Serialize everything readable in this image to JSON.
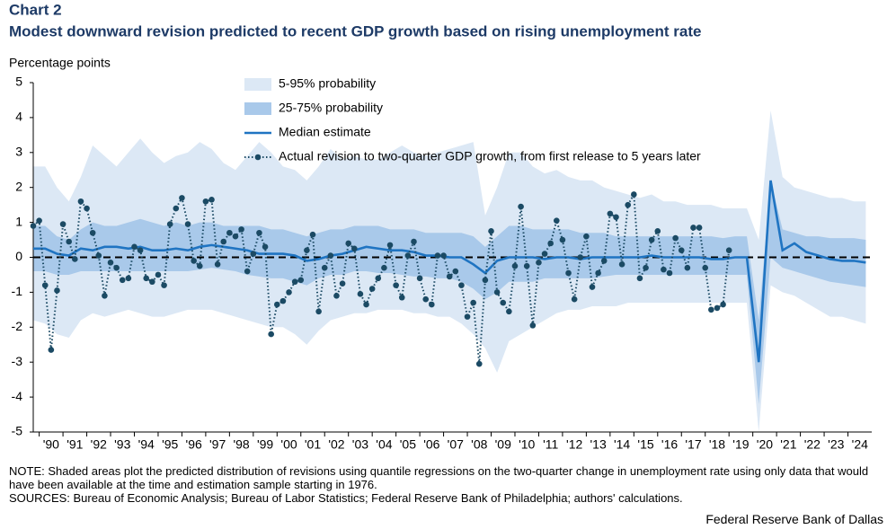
{
  "chart_data": {
    "type": "line",
    "title": "Chart 2",
    "subtitle": "Modest downward revision predicted to recent GDP growth based on rising unemployment rate",
    "y_label": "Percentage points",
    "xlim": [
      1989.75,
      2025
    ],
    "xticks": [
      {
        "value": 1990,
        "label": "'90"
      },
      {
        "value": 1991,
        "label": "'91"
      },
      {
        "value": 1992,
        "label": "'92"
      },
      {
        "value": 1993,
        "label": "'93"
      },
      {
        "value": 1994,
        "label": "'94"
      },
      {
        "value": 1995,
        "label": "'95"
      },
      {
        "value": 1996,
        "label": "'96"
      },
      {
        "value": 1997,
        "label": "'97"
      },
      {
        "value": 1998,
        "label": "'98"
      },
      {
        "value": 1999,
        "label": "'99"
      },
      {
        "value": 2000,
        "label": "'00"
      },
      {
        "value": 2001,
        "label": "'01"
      },
      {
        "value": 2002,
        "label": "'02"
      },
      {
        "value": 2003,
        "label": "'03"
      },
      {
        "value": 2004,
        "label": "'04"
      },
      {
        "value": 2005,
        "label": "'05"
      },
      {
        "value": 2006,
        "label": "'06"
      },
      {
        "value": 2007,
        "label": "'07"
      },
      {
        "value": 2008,
        "label": "'08"
      },
      {
        "value": 2009,
        "label": "'09"
      },
      {
        "value": 2010,
        "label": "'10"
      },
      {
        "value": 2011,
        "label": "'11"
      },
      {
        "value": 2012,
        "label": "'12"
      },
      {
        "value": 2013,
        "label": "'13"
      },
      {
        "value": 2014,
        "label": "'14"
      },
      {
        "value": 2015,
        "label": "'15"
      },
      {
        "value": 2016,
        "label": "'16"
      },
      {
        "value": 2017,
        "label": "'17"
      },
      {
        "value": 2018,
        "label": "'18"
      },
      {
        "value": 2019,
        "label": "'19"
      },
      {
        "value": 2020,
        "label": "'20"
      },
      {
        "value": 2021,
        "label": "'21"
      },
      {
        "value": 2022,
        "label": "'22"
      },
      {
        "value": 2023,
        "label": "'23"
      },
      {
        "value": 2024,
        "label": "'24"
      }
    ],
    "ylim": [
      -5,
      5
    ],
    "yticks": [
      -5,
      -4,
      -3,
      -2,
      -1,
      0,
      1,
      2,
      3,
      4,
      5
    ],
    "reference_line": 0,
    "legend": "top",
    "band_x": [
      1989.75,
      1990.25,
      1990.75,
      1991.25,
      1991.75,
      1992.25,
      1992.75,
      1993.25,
      1993.75,
      1994.25,
      1994.75,
      1995.25,
      1995.75,
      1996.25,
      1996.75,
      1997.25,
      1997.75,
      1998.25,
      1998.75,
      1999.25,
      1999.75,
      2000.25,
      2000.75,
      2001.25,
      2001.75,
      2002.25,
      2002.75,
      2003.25,
      2003.75,
      2004.25,
      2004.75,
      2005.25,
      2005.75,
      2006.25,
      2006.75,
      2007.25,
      2007.75,
      2008.25,
      2008.75,
      2009.25,
      2009.75,
      2010.25,
      2010.75,
      2011.25,
      2011.75,
      2012.25,
      2012.75,
      2013.25,
      2013.75,
      2014.25,
      2014.75,
      2015.25,
      2015.75,
      2016.25,
      2016.75,
      2017.25,
      2017.75,
      2018.25,
      2018.75,
      2019.25,
      2019.75,
      2020.25,
      2020.75,
      2021.25,
      2021.75,
      2022.25,
      2022.75,
      2023.25,
      2023.75,
      2024.25,
      2024.75
    ],
    "series": [
      {
        "name": "5-95% probability",
        "kind": "band",
        "color": "#dce8f5",
        "high": [
          2.6,
          2.6,
          2.0,
          1.6,
          2.3,
          3.2,
          2.9,
          2.6,
          3.0,
          3.4,
          3.0,
          2.7,
          2.9,
          3.0,
          3.3,
          3.1,
          2.7,
          2.5,
          2.9,
          3.3,
          3.0,
          2.6,
          2.5,
          2.2,
          2.6,
          3.1,
          2.8,
          2.9,
          2.8,
          2.8,
          3.0,
          3.2,
          3.0,
          2.9,
          3.0,
          3.1,
          3.2,
          3.3,
          1.2,
          2.0,
          3.0,
          3.0,
          2.6,
          2.4,
          2.5,
          2.3,
          2.2,
          2.2,
          2.0,
          1.9,
          1.8,
          1.7,
          1.8,
          1.6,
          1.6,
          1.5,
          1.5,
          1.5,
          1.4,
          1.4,
          1.4,
          0.5,
          4.2,
          2.3,
          2.0,
          1.9,
          1.8,
          1.7,
          1.7,
          1.6,
          1.6
        ],
        "low": [
          -1.8,
          -1.9,
          -2.2,
          -2.3,
          -1.8,
          -1.6,
          -1.7,
          -1.6,
          -1.5,
          -1.6,
          -1.7,
          -1.7,
          -1.6,
          -1.5,
          -1.5,
          -1.5,
          -1.6,
          -1.7,
          -1.8,
          -1.9,
          -2.0,
          -2.0,
          -2.2,
          -2.5,
          -2.1,
          -1.8,
          -1.7,
          -1.6,
          -1.6,
          -1.5,
          -1.5,
          -1.5,
          -1.6,
          -1.6,
          -1.7,
          -1.7,
          -1.9,
          -2.2,
          -2.6,
          -3.3,
          -2.4,
          -2.2,
          -2.0,
          -1.8,
          -1.6,
          -1.5,
          -1.5,
          -1.4,
          -1.4,
          -1.4,
          -1.3,
          -1.3,
          -1.3,
          -1.3,
          -1.3,
          -1.3,
          -1.3,
          -1.3,
          -1.3,
          -1.3,
          -1.3,
          -5,
          -0.8,
          -1.0,
          -1.1,
          -1.3,
          -1.5,
          -1.7,
          -1.7,
          -1.8,
          -1.9
        ]
      },
      {
        "name": "25-75% probability",
        "kind": "band",
        "color": "#a9c9ea",
        "high": [
          0.9,
          0.9,
          0.6,
          0.5,
          0.8,
          1.0,
          0.9,
          0.9,
          1.0,
          1.1,
          1.0,
          0.9,
          1.0,
          0.9,
          1.0,
          1.0,
          0.9,
          0.9,
          0.9,
          0.9,
          0.8,
          0.8,
          0.7,
          0.6,
          0.7,
          0.8,
          0.8,
          0.9,
          0.9,
          0.9,
          0.8,
          0.8,
          0.8,
          0.7,
          0.7,
          0.7,
          0.7,
          0.6,
          0.3,
          0.6,
          0.9,
          0.9,
          0.8,
          0.8,
          0.8,
          0.8,
          0.7,
          0.7,
          0.7,
          0.6,
          0.6,
          0.6,
          0.6,
          0.6,
          0.6,
          0.6,
          0.6,
          0.6,
          0.55,
          0.6,
          0.6,
          -1.8,
          2.2,
          0.8,
          0.7,
          0.6,
          0.6,
          0.55,
          0.55,
          0.55,
          0.5
        ],
        "low": [
          -0.4,
          -0.4,
          -0.5,
          -0.5,
          -0.4,
          -0.4,
          -0.4,
          -0.4,
          -0.4,
          -0.4,
          -0.4,
          -0.4,
          -0.4,
          -0.4,
          -0.35,
          -0.3,
          -0.35,
          -0.4,
          -0.5,
          -0.55,
          -0.6,
          -0.6,
          -0.7,
          -0.8,
          -0.6,
          -0.5,
          -0.5,
          -0.4,
          -0.4,
          -0.45,
          -0.45,
          -0.5,
          -0.55,
          -0.55,
          -0.6,
          -0.6,
          -0.7,
          -0.9,
          -1.2,
          -1.0,
          -0.7,
          -0.7,
          -0.7,
          -0.6,
          -0.6,
          -0.6,
          -0.6,
          -0.6,
          -0.55,
          -0.5,
          -0.5,
          -0.5,
          -0.5,
          -0.5,
          -0.5,
          -0.5,
          -0.5,
          -0.5,
          -0.5,
          -0.5,
          -0.5,
          -4.2,
          0.0,
          -0.3,
          -0.4,
          -0.5,
          -0.6,
          -0.7,
          -0.75,
          -0.8,
          -0.85
        ]
      },
      {
        "name": "Median estimate",
        "kind": "line",
        "color": "#1f74c2",
        "values": [
          0.25,
          0.25,
          0.1,
          0.05,
          0.25,
          0.2,
          0.3,
          0.3,
          0.25,
          0.3,
          0.2,
          0.2,
          0.25,
          0.2,
          0.3,
          0.35,
          0.3,
          0.25,
          0.2,
          0.1,
          0.1,
          0.1,
          0.05,
          -0.1,
          -0.05,
          0.05,
          0.1,
          0.2,
          0.3,
          0.25,
          0.2,
          0.2,
          0.15,
          0.05,
          0.05,
          0,
          0,
          -0.2,
          -0.45,
          -0.1,
          0,
          0,
          0,
          -0.05,
          0,
          0,
          -0.05,
          0,
          0,
          0,
          0,
          0,
          0.05,
          0,
          0,
          0,
          0,
          -0.05,
          -0.05,
          0,
          0,
          -3,
          2.2,
          0.2,
          0.4,
          0.15,
          0.05,
          -0.05,
          -0.1,
          -0.1,
          -0.15
        ]
      },
      {
        "name": "Actual revision to two-quarter GDP growth, from first release to 5 years later",
        "kind": "dots",
        "color": "#1b4a64",
        "x": [
          1989.75,
          1990,
          1990.25,
          1990.5,
          1990.75,
          1991,
          1991.25,
          1991.5,
          1991.75,
          1992,
          1992.25,
          1992.5,
          1992.75,
          1993,
          1993.25,
          1993.5,
          1993.75,
          1994,
          1994.25,
          1994.5,
          1994.75,
          1995,
          1995.25,
          1995.5,
          1995.75,
          1996,
          1996.25,
          1996.5,
          1996.75,
          1997,
          1997.25,
          1997.5,
          1997.75,
          1998,
          1998.25,
          1998.5,
          1998.75,
          1999,
          1999.25,
          1999.5,
          1999.75,
          2000,
          2000.25,
          2000.5,
          2000.75,
          2001,
          2001.25,
          2001.5,
          2001.75,
          2002,
          2002.25,
          2002.5,
          2002.75,
          2003,
          2003.25,
          2003.5,
          2003.75,
          2004,
          2004.25,
          2004.5,
          2004.75,
          2005,
          2005.25,
          2005.5,
          2005.75,
          2006,
          2006.25,
          2006.5,
          2006.75,
          2007,
          2007.25,
          2007.5,
          2007.75,
          2008,
          2008.25,
          2008.5,
          2008.75,
          2009,
          2009.25,
          2009.5,
          2009.75,
          2010,
          2010.25,
          2010.5,
          2010.75,
          2011,
          2011.25,
          2011.5,
          2011.75,
          2012,
          2012.25,
          2012.5,
          2012.75,
          2013,
          2013.25,
          2013.5,
          2013.75,
          2014,
          2014.25,
          2014.5,
          2014.75,
          2015,
          2015.25,
          2015.5,
          2015.75,
          2016,
          2016.25,
          2016.5,
          2016.75,
          2017,
          2017.25,
          2017.5,
          2017.75,
          2018,
          2018.25,
          2018.5,
          2018.75,
          2019
        ],
        "values": [
          0.9,
          1.05,
          -0.8,
          -2.65,
          -0.95,
          0.95,
          0.45,
          -0.05,
          1.6,
          1.4,
          0.7,
          0.05,
          -1.1,
          -0.15,
          -0.3,
          -0.65,
          -0.6,
          0.3,
          0.2,
          -0.6,
          -0.7,
          -0.5,
          -0.8,
          0.95,
          1.4,
          1.7,
          0.95,
          -0.1,
          -0.25,
          1.6,
          1.65,
          -0.2,
          0.45,
          0.7,
          0.6,
          0.8,
          -0.4,
          0.1,
          0.7,
          0.3,
          -2.2,
          -1.35,
          -1.25,
          -1.0,
          -0.7,
          -0.65,
          0.2,
          0.65,
          -1.55,
          -0.3,
          0.05,
          -1.1,
          -0.75,
          0.4,
          0.25,
          -1.05,
          -1.35,
          -0.9,
          -0.6,
          -0.3,
          0.35,
          -0.8,
          -1.15,
          0.05,
          0.45,
          -0.6,
          -1.2,
          -1.35,
          0.05,
          0.05,
          -0.55,
          -0.4,
          -0.8,
          -1.7,
          -1.3,
          -3.05,
          -0.65,
          0.75,
          -1.0,
          -1.3,
          -1.55,
          -0.25,
          1.45,
          -0.25,
          -1.95,
          -0.15,
          0.1,
          0.4,
          1.05,
          0.5,
          -0.45,
          -1.2,
          0.0,
          0.6,
          -0.85,
          -0.45,
          -0.1,
          1.25,
          1.15,
          -0.2,
          1.5,
          1.8,
          -0.6,
          -0.3,
          0.5,
          0.75,
          -0.35,
          -0.45,
          0.55,
          0.2,
          -0.3,
          0.85,
          0.85,
          -0.3,
          -1.5,
          -1.45,
          -1.35,
          0.2
        ]
      }
    ],
    "note": "NOTE: Shaded areas plot the predicted distribution of revisions using quantile regressions on the two-quarter change in unemployment rate using only data that would have been available at the time and estimation sample starting in 1976.",
    "sources": "SOURCES: Bureau of Economic Analysis; Bureau of Labor Statistics; Federal Reserve Bank of Philadelphia; authors' calculations.",
    "credit": "Federal Reserve Bank of Dallas"
  }
}
